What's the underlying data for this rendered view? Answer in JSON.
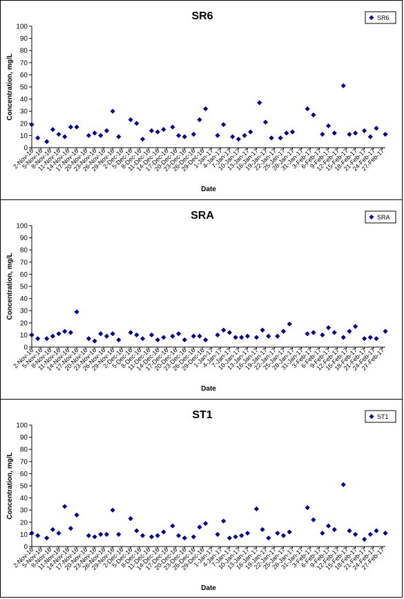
{
  "xlabel_common": "Date",
  "chart_data": [
    {
      "type": "scatter",
      "title": "SR6",
      "xlabel": "Date",
      "ylabel": "Concentration, mg/L",
      "ylim": [
        0,
        100
      ],
      "yticks": [
        0,
        10,
        20,
        30,
        40,
        50,
        60,
        70,
        80,
        90,
        100
      ],
      "xlim": [
        "2016-11-02",
        "2017-02-28"
      ],
      "xtick_labels": [
        "2-Nov-16",
        "5-Nov-16",
        "8-Nov-16",
        "11-Nov-16",
        "14-Nov-16",
        "17-Nov-16",
        "20-Nov-16",
        "23-Nov-16",
        "26-Nov-16",
        "29-Nov-16",
        "2-Dec-16",
        "5-Dec-16",
        "8-Dec-16",
        "11-Dec-16",
        "14-Dec-16",
        "17-Dec-16",
        "20-Dec-16",
        "23-Dec-16",
        "26-Dec-16",
        "29-Dec-16",
        "1-Jan-17",
        "4-Jan-17",
        "7-Jan-17",
        "10-Jan-17",
        "13-Jan-17",
        "16-Jan-17",
        "19-Jan-17",
        "22-Jan-17",
        "25-Jan-17",
        "28-Jan-17",
        "31-Jan-17",
        "3-Feb-17",
        "6-Feb-17",
        "9-Feb-17",
        "12-Feb-17",
        "15-Feb-17",
        "18-Feb-17",
        "21-Feb-17",
        "24-Feb-17",
        "27-Feb-17"
      ],
      "legend": {
        "position": "top-right",
        "entries": [
          "SR6"
        ]
      },
      "series": [
        {
          "name": "SR6",
          "color": "#000080",
          "marker": "diamond",
          "points": [
            [
              "2016-11-02",
              19
            ],
            [
              "2016-11-04",
              8
            ],
            [
              "2016-11-07",
              5
            ],
            [
              "2016-11-09",
              15
            ],
            [
              "2016-11-11",
              11
            ],
            [
              "2016-11-13",
              9
            ],
            [
              "2016-11-15",
              17
            ],
            [
              "2016-11-17",
              17
            ],
            [
              "2016-11-21",
              10
            ],
            [
              "2016-11-23",
              12
            ],
            [
              "2016-11-25",
              10
            ],
            [
              "2016-11-27",
              14
            ],
            [
              "2016-11-29",
              30
            ],
            [
              "2016-12-01",
              9
            ],
            [
              "2016-12-05",
              23
            ],
            [
              "2016-12-07",
              20
            ],
            [
              "2016-12-09",
              7
            ],
            [
              "2016-12-12",
              14
            ],
            [
              "2016-12-14",
              13
            ],
            [
              "2016-12-16",
              15
            ],
            [
              "2016-12-19",
              17
            ],
            [
              "2016-12-21",
              10
            ],
            [
              "2016-12-23",
              9
            ],
            [
              "2016-12-26",
              11
            ],
            [
              "2016-12-28",
              23
            ],
            [
              "2016-12-30",
              32
            ],
            [
              "2017-01-03",
              10
            ],
            [
              "2017-01-05",
              19
            ],
            [
              "2017-01-08",
              9
            ],
            [
              "2017-01-10",
              7
            ],
            [
              "2017-01-12",
              10
            ],
            [
              "2017-01-14",
              13
            ],
            [
              "2017-01-17",
              37
            ],
            [
              "2017-01-19",
              21
            ],
            [
              "2017-01-21",
              8
            ],
            [
              "2017-01-24",
              8
            ],
            [
              "2017-01-26",
              12
            ],
            [
              "2017-01-28",
              13
            ],
            [
              "2017-02-02",
              32
            ],
            [
              "2017-02-04",
              27
            ],
            [
              "2017-02-07",
              11
            ],
            [
              "2017-02-09",
              18
            ],
            [
              "2017-02-11",
              12
            ],
            [
              "2017-02-14",
              51
            ],
            [
              "2017-02-16",
              11
            ],
            [
              "2017-02-18",
              12
            ],
            [
              "2017-02-21",
              14
            ],
            [
              "2017-02-23",
              9
            ],
            [
              "2017-02-25",
              16
            ],
            [
              "2017-02-28",
              11
            ]
          ]
        }
      ]
    },
    {
      "type": "scatter",
      "title": "SRA",
      "xlabel": "Date",
      "ylabel": "Concentration, mg/L",
      "ylim": [
        0,
        100
      ],
      "yticks": [
        0,
        10,
        20,
        30,
        40,
        50,
        60,
        70,
        80,
        90,
        100
      ],
      "xlim": [
        "2016-11-02",
        "2017-02-28"
      ],
      "xtick_labels": [
        "2-Nov-16",
        "5-Nov-16",
        "8-Nov-16",
        "11-Nov-16",
        "14-Nov-16",
        "17-Nov-16",
        "20-Nov-16",
        "23-Nov-16",
        "26-Nov-16",
        "29-Nov-16",
        "2-Dec-16",
        "5-Dec-16",
        "8-Dec-16",
        "11-Dec-16",
        "14-Dec-16",
        "17-Dec-16",
        "20-Dec-16",
        "23-Dec-16",
        "26-Dec-16",
        "29-Dec-16",
        "1-Jan-17",
        "4-Jan-17",
        "7-Jan-17",
        "10-Jan-17",
        "13-Jan-17",
        "16-Jan-17",
        "19-Jan-17",
        "22-Jan-17",
        "25-Jan-17",
        "28-Jan-17",
        "31-Jan-17",
        "3-Feb-17",
        "6-Feb-17",
        "9-Feb-17",
        "12-Feb-17",
        "15-Feb-17",
        "18-Feb-17",
        "21-Feb-17",
        "24-Feb-17",
        "27-Feb-17"
      ],
      "legend": {
        "position": "top-right",
        "entries": [
          "SRA"
        ]
      },
      "series": [
        {
          "name": "SRA",
          "color": "#000080",
          "marker": "diamond",
          "points": [
            [
              "2016-11-02",
              10
            ],
            [
              "2016-11-04",
              7
            ],
            [
              "2016-11-07",
              7
            ],
            [
              "2016-11-09",
              9
            ],
            [
              "2016-11-11",
              11
            ],
            [
              "2016-11-13",
              13
            ],
            [
              "2016-11-15",
              12
            ],
            [
              "2016-11-17",
              29
            ],
            [
              "2016-11-21",
              7
            ],
            [
              "2016-11-23",
              5
            ],
            [
              "2016-11-25",
              11
            ],
            [
              "2016-11-27",
              9
            ],
            [
              "2016-11-29",
              11
            ],
            [
              "2016-12-01",
              6
            ],
            [
              "2016-12-05",
              12
            ],
            [
              "2016-12-07",
              10
            ],
            [
              "2016-12-09",
              7
            ],
            [
              "2016-12-12",
              10
            ],
            [
              "2016-12-14",
              6
            ],
            [
              "2016-12-16",
              8
            ],
            [
              "2016-12-19",
              9
            ],
            [
              "2016-12-21",
              11
            ],
            [
              "2016-12-23",
              6
            ],
            [
              "2016-12-26",
              9
            ],
            [
              "2016-12-28",
              9
            ],
            [
              "2016-12-30",
              6
            ],
            [
              "2017-01-03",
              10
            ],
            [
              "2017-01-05",
              14
            ],
            [
              "2017-01-07",
              12
            ],
            [
              "2017-01-09",
              8
            ],
            [
              "2017-01-11",
              8
            ],
            [
              "2017-01-13",
              9
            ],
            [
              "2017-01-16",
              8
            ],
            [
              "2017-01-18",
              14
            ],
            [
              "2017-01-20",
              9
            ],
            [
              "2017-01-23",
              9
            ],
            [
              "2017-01-25",
              13
            ],
            [
              "2017-01-27",
              19
            ],
            [
              "2017-02-02",
              11
            ],
            [
              "2017-02-04",
              12
            ],
            [
              "2017-02-07",
              10
            ],
            [
              "2017-02-09",
              16
            ],
            [
              "2017-02-11",
              12
            ],
            [
              "2017-02-14",
              8
            ],
            [
              "2017-02-16",
              13
            ],
            [
              "2017-02-18",
              17
            ],
            [
              "2017-02-21",
              7
            ],
            [
              "2017-02-23",
              8
            ],
            [
              "2017-02-25",
              7
            ],
            [
              "2017-02-28",
              13
            ]
          ]
        }
      ]
    },
    {
      "type": "scatter",
      "title": "ST1",
      "xlabel": "Date",
      "ylabel": "Concentration, mg/L",
      "ylim": [
        0,
        100
      ],
      "yticks": [
        0,
        10,
        20,
        30,
        40,
        50,
        60,
        70,
        80,
        90,
        100
      ],
      "xlim": [
        "2016-11-02",
        "2017-02-28"
      ],
      "xtick_labels": [
        "2-Nov-16",
        "5-Nov-16",
        "8-Nov-16",
        "11-Nov-16",
        "14-Nov-16",
        "17-Nov-16",
        "20-Nov-16",
        "23-Nov-16",
        "26-Nov-16",
        "29-Nov-16",
        "2-Dec-16",
        "5-Dec-16",
        "8-Dec-16",
        "11-Dec-16",
        "14-Dec-16",
        "17-Dec-16",
        "20-Dec-16",
        "23-Dec-16",
        "26-Dec-16",
        "29-Dec-16",
        "1-Jan-17",
        "4-Jan-17",
        "7-Jan-17",
        "10-Jan-17",
        "13-Jan-17",
        "16-Jan-17",
        "19-Jan-17",
        "22-Jan-17",
        "25-Jan-17",
        "28-Jan-17",
        "31-Jan-17",
        "3-Feb-17",
        "6-Feb-17",
        "9-Feb-17",
        "12-Feb-17",
        "15-Feb-17",
        "18-Feb-17",
        "21-Feb-17",
        "24-Feb-17",
        "27-Feb-17"
      ],
      "legend": {
        "position": "top-right",
        "entries": [
          "ST1"
        ]
      },
      "series": [
        {
          "name": "ST1",
          "color": "#000080",
          "marker": "diamond",
          "points": [
            [
              "2016-11-02",
              11
            ],
            [
              "2016-11-04",
              9
            ],
            [
              "2016-11-07",
              7
            ],
            [
              "2016-11-09",
              14
            ],
            [
              "2016-11-11",
              11
            ],
            [
              "2016-11-13",
              33
            ],
            [
              "2016-11-15",
              15
            ],
            [
              "2016-11-17",
              26
            ],
            [
              "2016-11-21",
              9
            ],
            [
              "2016-11-23",
              8
            ],
            [
              "2016-11-25",
              10
            ],
            [
              "2016-11-27",
              10
            ],
            [
              "2016-11-29",
              30
            ],
            [
              "2016-12-01",
              10
            ],
            [
              "2016-12-05",
              23
            ],
            [
              "2016-12-07",
              13
            ],
            [
              "2016-12-09",
              9
            ],
            [
              "2016-12-12",
              8
            ],
            [
              "2016-12-14",
              9
            ],
            [
              "2016-12-16",
              12
            ],
            [
              "2016-12-19",
              17
            ],
            [
              "2016-12-21",
              9
            ],
            [
              "2016-12-23",
              7
            ],
            [
              "2016-12-26",
              8
            ],
            [
              "2016-12-28",
              16
            ],
            [
              "2016-12-30",
              19
            ],
            [
              "2017-01-03",
              10
            ],
            [
              "2017-01-05",
              21
            ],
            [
              "2017-01-07",
              7
            ],
            [
              "2017-01-09",
              8
            ],
            [
              "2017-01-11",
              9
            ],
            [
              "2017-01-13",
              11
            ],
            [
              "2017-01-16",
              31
            ],
            [
              "2017-01-18",
              14
            ],
            [
              "2017-01-20",
              7
            ],
            [
              "2017-01-23",
              11
            ],
            [
              "2017-01-25",
              9
            ],
            [
              "2017-01-27",
              12
            ],
            [
              "2017-02-02",
              32
            ],
            [
              "2017-02-04",
              22
            ],
            [
              "2017-02-07",
              11
            ],
            [
              "2017-02-09",
              17
            ],
            [
              "2017-02-11",
              14
            ],
            [
              "2017-02-14",
              51
            ],
            [
              "2017-02-16",
              13
            ],
            [
              "2017-02-18",
              10
            ],
            [
              "2017-02-21",
              6
            ],
            [
              "2017-02-23",
              10
            ],
            [
              "2017-02-25",
              13
            ],
            [
              "2017-02-28",
              11
            ]
          ]
        }
      ]
    }
  ]
}
